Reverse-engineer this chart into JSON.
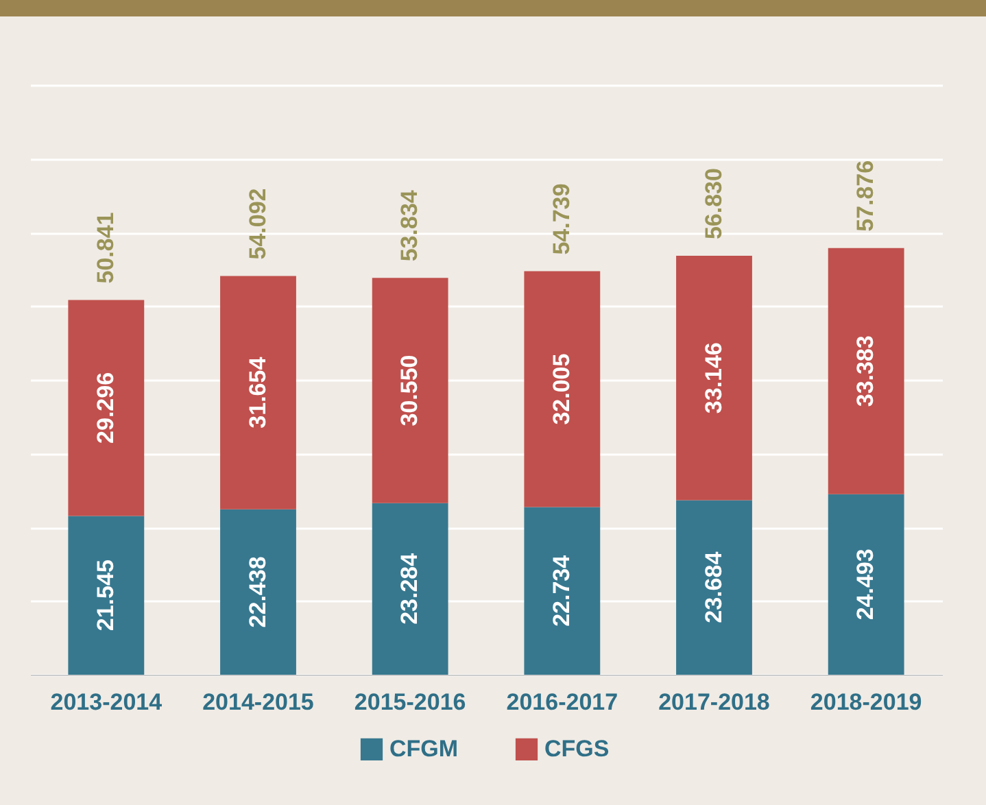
{
  "chart_data": {
    "type": "bar",
    "stacked": true,
    "categories": [
      "2013-2014",
      "2014-2015",
      "2015-2016",
      "2016-2017",
      "2017-2018",
      "2018-2019"
    ],
    "series": [
      {
        "name": "CFGM",
        "color": "#37788f",
        "values": [
          21.545,
          22.438,
          23.284,
          22.734,
          23.684,
          24.493
        ],
        "value_labels": [
          "21.545",
          "22.438",
          "23.284",
          "22.734",
          "23.684",
          "24.493"
        ]
      },
      {
        "name": "CFGS",
        "color": "#c0504d",
        "values": [
          29.296,
          31.654,
          30.55,
          32.005,
          33.146,
          33.383
        ],
        "value_labels": [
          "29.296",
          "31.654",
          "30.550",
          "32.005",
          "33.146",
          "33.383"
        ]
      }
    ],
    "totals": [
      "50.841",
      "54.092",
      "53.834",
      "54.739",
      "56.830",
      "57.876"
    ],
    "ylim": [
      0,
      80
    ],
    "yticks": [
      {
        "value": 0,
        "label": null
      },
      {
        "value": 10,
        "label": null
      },
      {
        "value": 20,
        "label": null
      },
      {
        "value": 30,
        "label": null
      },
      {
        "value": 40,
        "label": null
      },
      {
        "value": 50,
        "label": null
      },
      {
        "value": 60,
        "label": null
      },
      {
        "value": 70,
        "label": null
      },
      {
        "value": 80,
        "label": null
      }
    ],
    "tick_labels": "x",
    "grid": "y",
    "legend": "bottom"
  }
}
